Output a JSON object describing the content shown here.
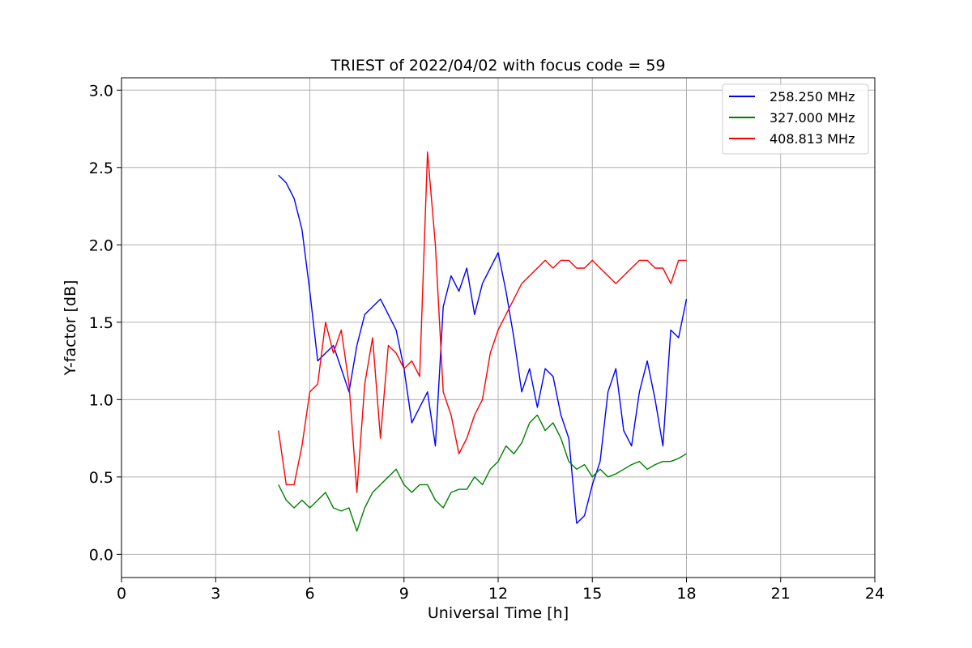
{
  "chart_data": {
    "type": "line",
    "title": "TRIEST of 2022/04/02 with focus code = 59",
    "xlabel": "Universal Time [h]",
    "ylabel": "Y-factor [dB]",
    "xlim": [
      0,
      24
    ],
    "ylim": [
      -0.15,
      3.08
    ],
    "xticks": [
      0,
      3,
      6,
      9,
      12,
      15,
      18,
      21,
      24
    ],
    "yticks": [
      0.0,
      0.5,
      1.0,
      1.5,
      2.0,
      2.5,
      3.0
    ],
    "xtick_labels": [
      "0",
      "3",
      "6",
      "9",
      "12",
      "15",
      "18",
      "21",
      "24"
    ],
    "ytick_labels": [
      "0.0",
      "0.5",
      "1.0",
      "1.5",
      "2.0",
      "2.5",
      "3.0"
    ],
    "grid": true,
    "legend_position": "top-right",
    "series": [
      {
        "name": "258.250 MHz",
        "color": "#0000ff",
        "x": [
          5.0,
          5.25,
          5.5,
          5.75,
          6.0,
          6.25,
          6.5,
          6.75,
          7.0,
          7.25,
          7.5,
          7.75,
          8.0,
          8.25,
          8.5,
          8.75,
          9.0,
          9.25,
          9.5,
          9.75,
          10.0,
          10.25,
          10.5,
          10.75,
          11.0,
          11.25,
          11.5,
          11.75,
          12.0,
          12.25,
          12.5,
          12.75,
          13.0,
          13.25,
          13.5,
          13.75,
          14.0,
          14.25,
          14.5,
          14.75,
          15.0,
          15.25,
          15.5,
          15.75,
          16.0,
          16.25,
          16.5,
          16.75,
          17.0,
          17.25,
          17.5,
          17.75,
          18.0
        ],
        "y": [
          2.45,
          2.4,
          2.3,
          2.1,
          1.7,
          1.25,
          1.3,
          1.35,
          1.2,
          1.05,
          1.35,
          1.55,
          1.6,
          1.65,
          1.55,
          1.45,
          1.2,
          0.85,
          0.95,
          1.05,
          0.7,
          1.6,
          1.8,
          1.7,
          1.85,
          1.55,
          1.75,
          1.85,
          1.95,
          1.7,
          1.4,
          1.05,
          1.2,
          0.95,
          1.2,
          1.15,
          0.9,
          0.75,
          0.2,
          0.25,
          0.45,
          0.6,
          1.05,
          1.2,
          0.8,
          0.7,
          1.05,
          1.25,
          1.0,
          0.7,
          1.45,
          1.4,
          1.65
        ]
      },
      {
        "name": "327.000 MHz",
        "color": "#008000",
        "x": [
          5.0,
          5.25,
          5.5,
          5.75,
          6.0,
          6.25,
          6.5,
          6.75,
          7.0,
          7.25,
          7.5,
          7.75,
          8.0,
          8.25,
          8.5,
          8.75,
          9.0,
          9.25,
          9.5,
          9.75,
          10.0,
          10.25,
          10.5,
          10.75,
          11.0,
          11.25,
          11.5,
          11.75,
          12.0,
          12.25,
          12.5,
          12.75,
          13.0,
          13.25,
          13.5,
          13.75,
          14.0,
          14.25,
          14.5,
          14.75,
          15.0,
          15.25,
          15.5,
          15.75,
          16.0,
          16.25,
          16.5,
          16.75,
          17.0,
          17.25,
          17.5,
          17.75,
          18.0
        ],
        "y": [
          0.45,
          0.35,
          0.3,
          0.35,
          0.3,
          0.35,
          0.4,
          0.3,
          0.28,
          0.3,
          0.15,
          0.3,
          0.4,
          0.45,
          0.5,
          0.55,
          0.45,
          0.4,
          0.45,
          0.45,
          0.35,
          0.3,
          0.4,
          0.42,
          0.42,
          0.5,
          0.45,
          0.55,
          0.6,
          0.7,
          0.65,
          0.72,
          0.85,
          0.9,
          0.8,
          0.85,
          0.75,
          0.6,
          0.55,
          0.58,
          0.5,
          0.55,
          0.5,
          0.52,
          0.55,
          0.58,
          0.6,
          0.55,
          0.58,
          0.6,
          0.6,
          0.62,
          0.65
        ]
      },
      {
        "name": "408.813 MHz",
        "color": "#ff0000",
        "x": [
          5.0,
          5.25,
          5.5,
          5.75,
          6.0,
          6.25,
          6.5,
          6.75,
          7.0,
          7.25,
          7.5,
          7.75,
          8.0,
          8.25,
          8.5,
          8.75,
          9.0,
          9.25,
          9.5,
          9.75,
          10.0,
          10.25,
          10.5,
          10.75,
          11.0,
          11.25,
          11.5,
          11.75,
          12.0,
          12.25,
          12.5,
          12.75,
          13.0,
          13.25,
          13.5,
          13.75,
          14.0,
          14.25,
          14.5,
          14.75,
          15.0,
          15.25,
          15.5,
          15.75,
          16.0,
          16.25,
          16.5,
          16.75,
          17.0,
          17.25,
          17.5,
          17.75,
          18.0
        ],
        "y": [
          0.8,
          0.45,
          0.45,
          0.7,
          1.05,
          1.1,
          1.5,
          1.3,
          1.45,
          1.1,
          0.4,
          1.1,
          1.4,
          0.75,
          1.35,
          1.3,
          1.2,
          1.25,
          1.15,
          2.6,
          2.0,
          1.05,
          0.9,
          0.65,
          0.75,
          0.9,
          1.0,
          1.3,
          1.45,
          1.55,
          1.65,
          1.75,
          1.8,
          1.85,
          1.9,
          1.85,
          1.9,
          1.9,
          1.85,
          1.85,
          1.9,
          1.85,
          1.8,
          1.75,
          1.8,
          1.85,
          1.9,
          1.9,
          1.85,
          1.85,
          1.75,
          1.9,
          1.9
        ]
      }
    ]
  }
}
